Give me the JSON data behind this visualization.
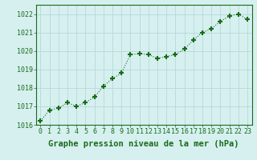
{
  "x": [
    0,
    1,
    2,
    3,
    4,
    5,
    6,
    7,
    8,
    9,
    10,
    11,
    12,
    13,
    14,
    15,
    16,
    17,
    18,
    19,
    20,
    21,
    22,
    23
  ],
  "y": [
    1016.2,
    1016.8,
    1016.9,
    1017.2,
    1017.0,
    1017.2,
    1017.5,
    1018.1,
    1018.5,
    1018.8,
    1019.8,
    1019.85,
    1019.8,
    1019.6,
    1019.7,
    1019.8,
    1020.1,
    1020.6,
    1021.0,
    1021.2,
    1021.6,
    1021.9,
    1022.0,
    1021.7
  ],
  "line_color": "#1a6b1a",
  "marker": "+",
  "marker_size": 5,
  "marker_lw": 1.5,
  "bg_color": "#d6f0f0",
  "grid_color": "#b8d8d8",
  "xlabel": "Graphe pression niveau de la mer (hPa)",
  "xlabel_color": "#1a6b1a",
  "tick_color": "#1a6b1a",
  "ylim": [
    1016,
    1022.5
  ],
  "xlim": [
    -0.5,
    23.5
  ],
  "yticks": [
    1016,
    1017,
    1018,
    1019,
    1020,
    1021,
    1022
  ],
  "xticks": [
    0,
    1,
    2,
    3,
    4,
    5,
    6,
    7,
    8,
    9,
    10,
    11,
    12,
    13,
    14,
    15,
    16,
    17,
    18,
    19,
    20,
    21,
    22,
    23
  ],
  "tick_fontsize": 6,
  "xlabel_fontsize": 7.5
}
